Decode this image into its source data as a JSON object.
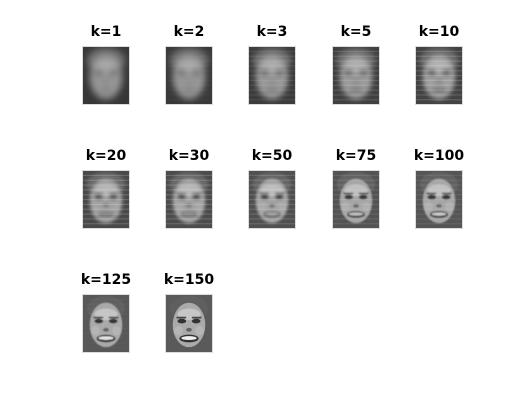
{
  "panels": [
    {
      "title": "k=1",
      "detail": 0.0
    },
    {
      "title": "k=2",
      "detail": 0.05
    },
    {
      "title": "k=3",
      "detail": 0.15
    },
    {
      "title": "k=5",
      "detail": 0.25
    },
    {
      "title": "k=10",
      "detail": 0.35
    },
    {
      "title": "k=20",
      "detail": 0.5
    },
    {
      "title": "k=30",
      "detail": 0.6
    },
    {
      "title": "k=50",
      "detail": 0.7
    },
    {
      "title": "k=75",
      "detail": 0.8
    },
    {
      "title": "k=100",
      "detail": 0.85
    },
    {
      "title": "k=125",
      "detail": 0.95
    },
    {
      "title": "k=150",
      "detail": 1.0
    }
  ]
}
